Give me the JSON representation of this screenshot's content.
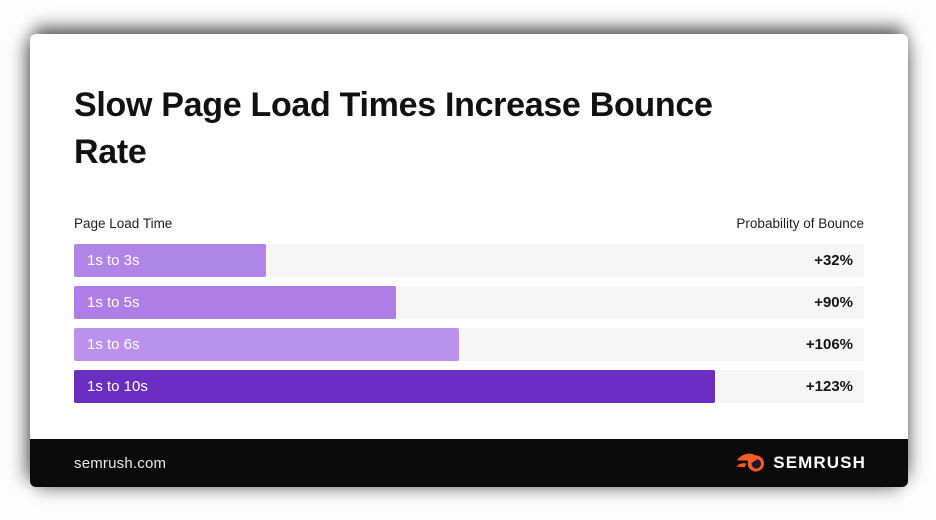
{
  "card": {
    "title": "Slow Page Load Times Increase Bounce Rate",
    "chart": {
      "left_header": "Page Load Time",
      "right_header": "Probability of Bounce",
      "rows": [
        {
          "label": "1s to 3s",
          "value": "+32%",
          "width_pct": 24.3,
          "color": "#b184e8"
        },
        {
          "label": "1s to 5s",
          "value": "+90%",
          "width_pct": 40.8,
          "color": "#ae7ee6"
        },
        {
          "label": "1s to 6s",
          "value": "+106%",
          "width_pct": 48.7,
          "color": "#bb90ee"
        },
        {
          "label": "1s to 10s",
          "value": "+123%",
          "width_pct": 81.1,
          "color": "#6a2ec2"
        }
      ],
      "track_color": "#f5f5f6"
    },
    "footer": {
      "site": "semrush.com",
      "brand": "SEMRUSH",
      "brand_orange": "#ff5c28"
    }
  },
  "chart_data": {
    "type": "bar",
    "orientation": "horizontal",
    "title": "Slow Page Load Times Increase Bounce Rate",
    "categories": [
      "1s to 3s",
      "1s to 5s",
      "1s to 6s",
      "1s to 10s"
    ],
    "values": [
      32,
      90,
      106,
      123
    ],
    "value_labels": [
      "+32%",
      "+90%",
      "+106%",
      "+123%"
    ],
    "xlabel": "Probability of Bounce",
    "ylabel": "Page Load Time",
    "legend": false,
    "grid": false,
    "bar_colors": [
      "#b184e8",
      "#ae7ee6",
      "#bb90ee",
      "#6a2ec2"
    ],
    "source": "semrush.com"
  }
}
